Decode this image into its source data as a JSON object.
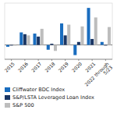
{
  "chart_data": {
    "type": "bar",
    "categories": [
      "2015",
      "2016",
      "2017",
      "2018",
      "2019",
      "2020",
      "2021",
      "2022 through\n5/23"
    ],
    "series": [
      {
        "name": "Cliffwater BDC Index",
        "color": "#1a6dbf",
        "values": [
          -1.5,
          10.5,
          9.5,
          -4.0,
          18.0,
          -8.5,
          31.0,
          2.5
        ]
      },
      {
        "name": "S&P/LSTA Leveraged Loan Index",
        "color": "#1a3664",
        "values": [
          -0.5,
          9.0,
          7.0,
          1.0,
          8.0,
          2.5,
          5.0,
          -0.5
        ]
      },
      {
        "name": "S&P 500",
        "color": "#bdbdbd",
        "values": [
          -0.5,
          8.0,
          13.5,
          -5.0,
          17.0,
          15.5,
          23.0,
          15.0
        ]
      }
    ],
    "ylim": [
      -12,
      35
    ],
    "tick_labels": "x",
    "grid": false,
    "legend": "bottom"
  }
}
